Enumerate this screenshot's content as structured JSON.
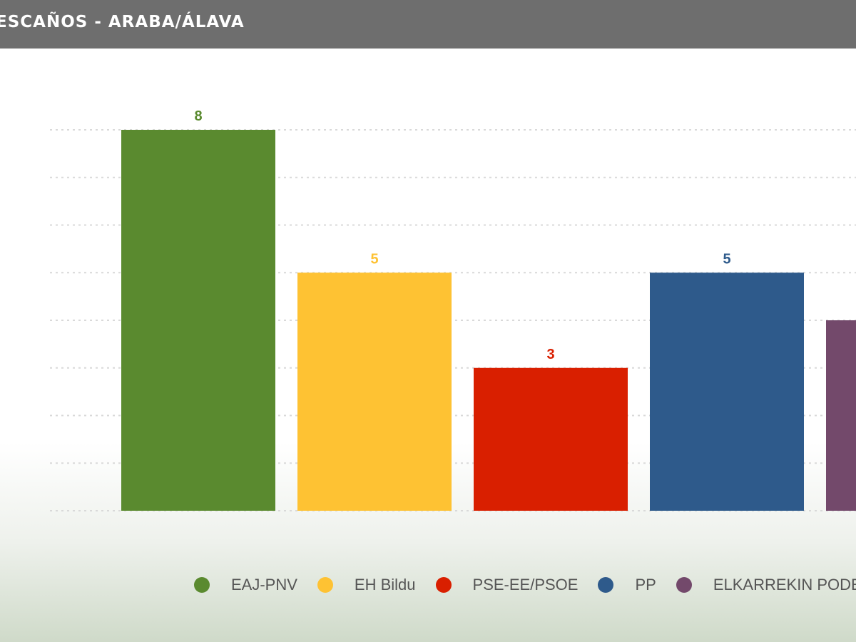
{
  "header": {
    "title": "ESCAÑOS - ARABA/ÁLAVA"
  },
  "chart_data": {
    "type": "bar",
    "title": "ESCAÑOS - ARABA/ÁLAVA",
    "categories": [
      "EAJ-PNV",
      "EH Bildu",
      "PSE-EE/PSOE",
      "PP",
      "ELKARREKIN PODEMOS"
    ],
    "values": [
      8,
      5,
      3,
      5,
      4
    ],
    "value_labels": [
      "8",
      "5",
      "3",
      "5",
      ""
    ],
    "colors": [
      "#5a8a2f",
      "#fec233",
      "#d91f00",
      "#2e5a8b",
      "#73496b"
    ],
    "ylim": [
      0,
      8
    ],
    "grid": true,
    "legend_position": "bottom"
  },
  "legend": [
    {
      "label": "EAJ-PNV",
      "color": "#5a8a2f"
    },
    {
      "label": "EH Bildu",
      "color": "#fec233"
    },
    {
      "label": "PSE-EE/PSOE",
      "color": "#d91f00"
    },
    {
      "label": "PP",
      "color": "#2e5a8b"
    },
    {
      "label": "ELKARREKIN PODEMOS",
      "color": "#73496b"
    }
  ]
}
